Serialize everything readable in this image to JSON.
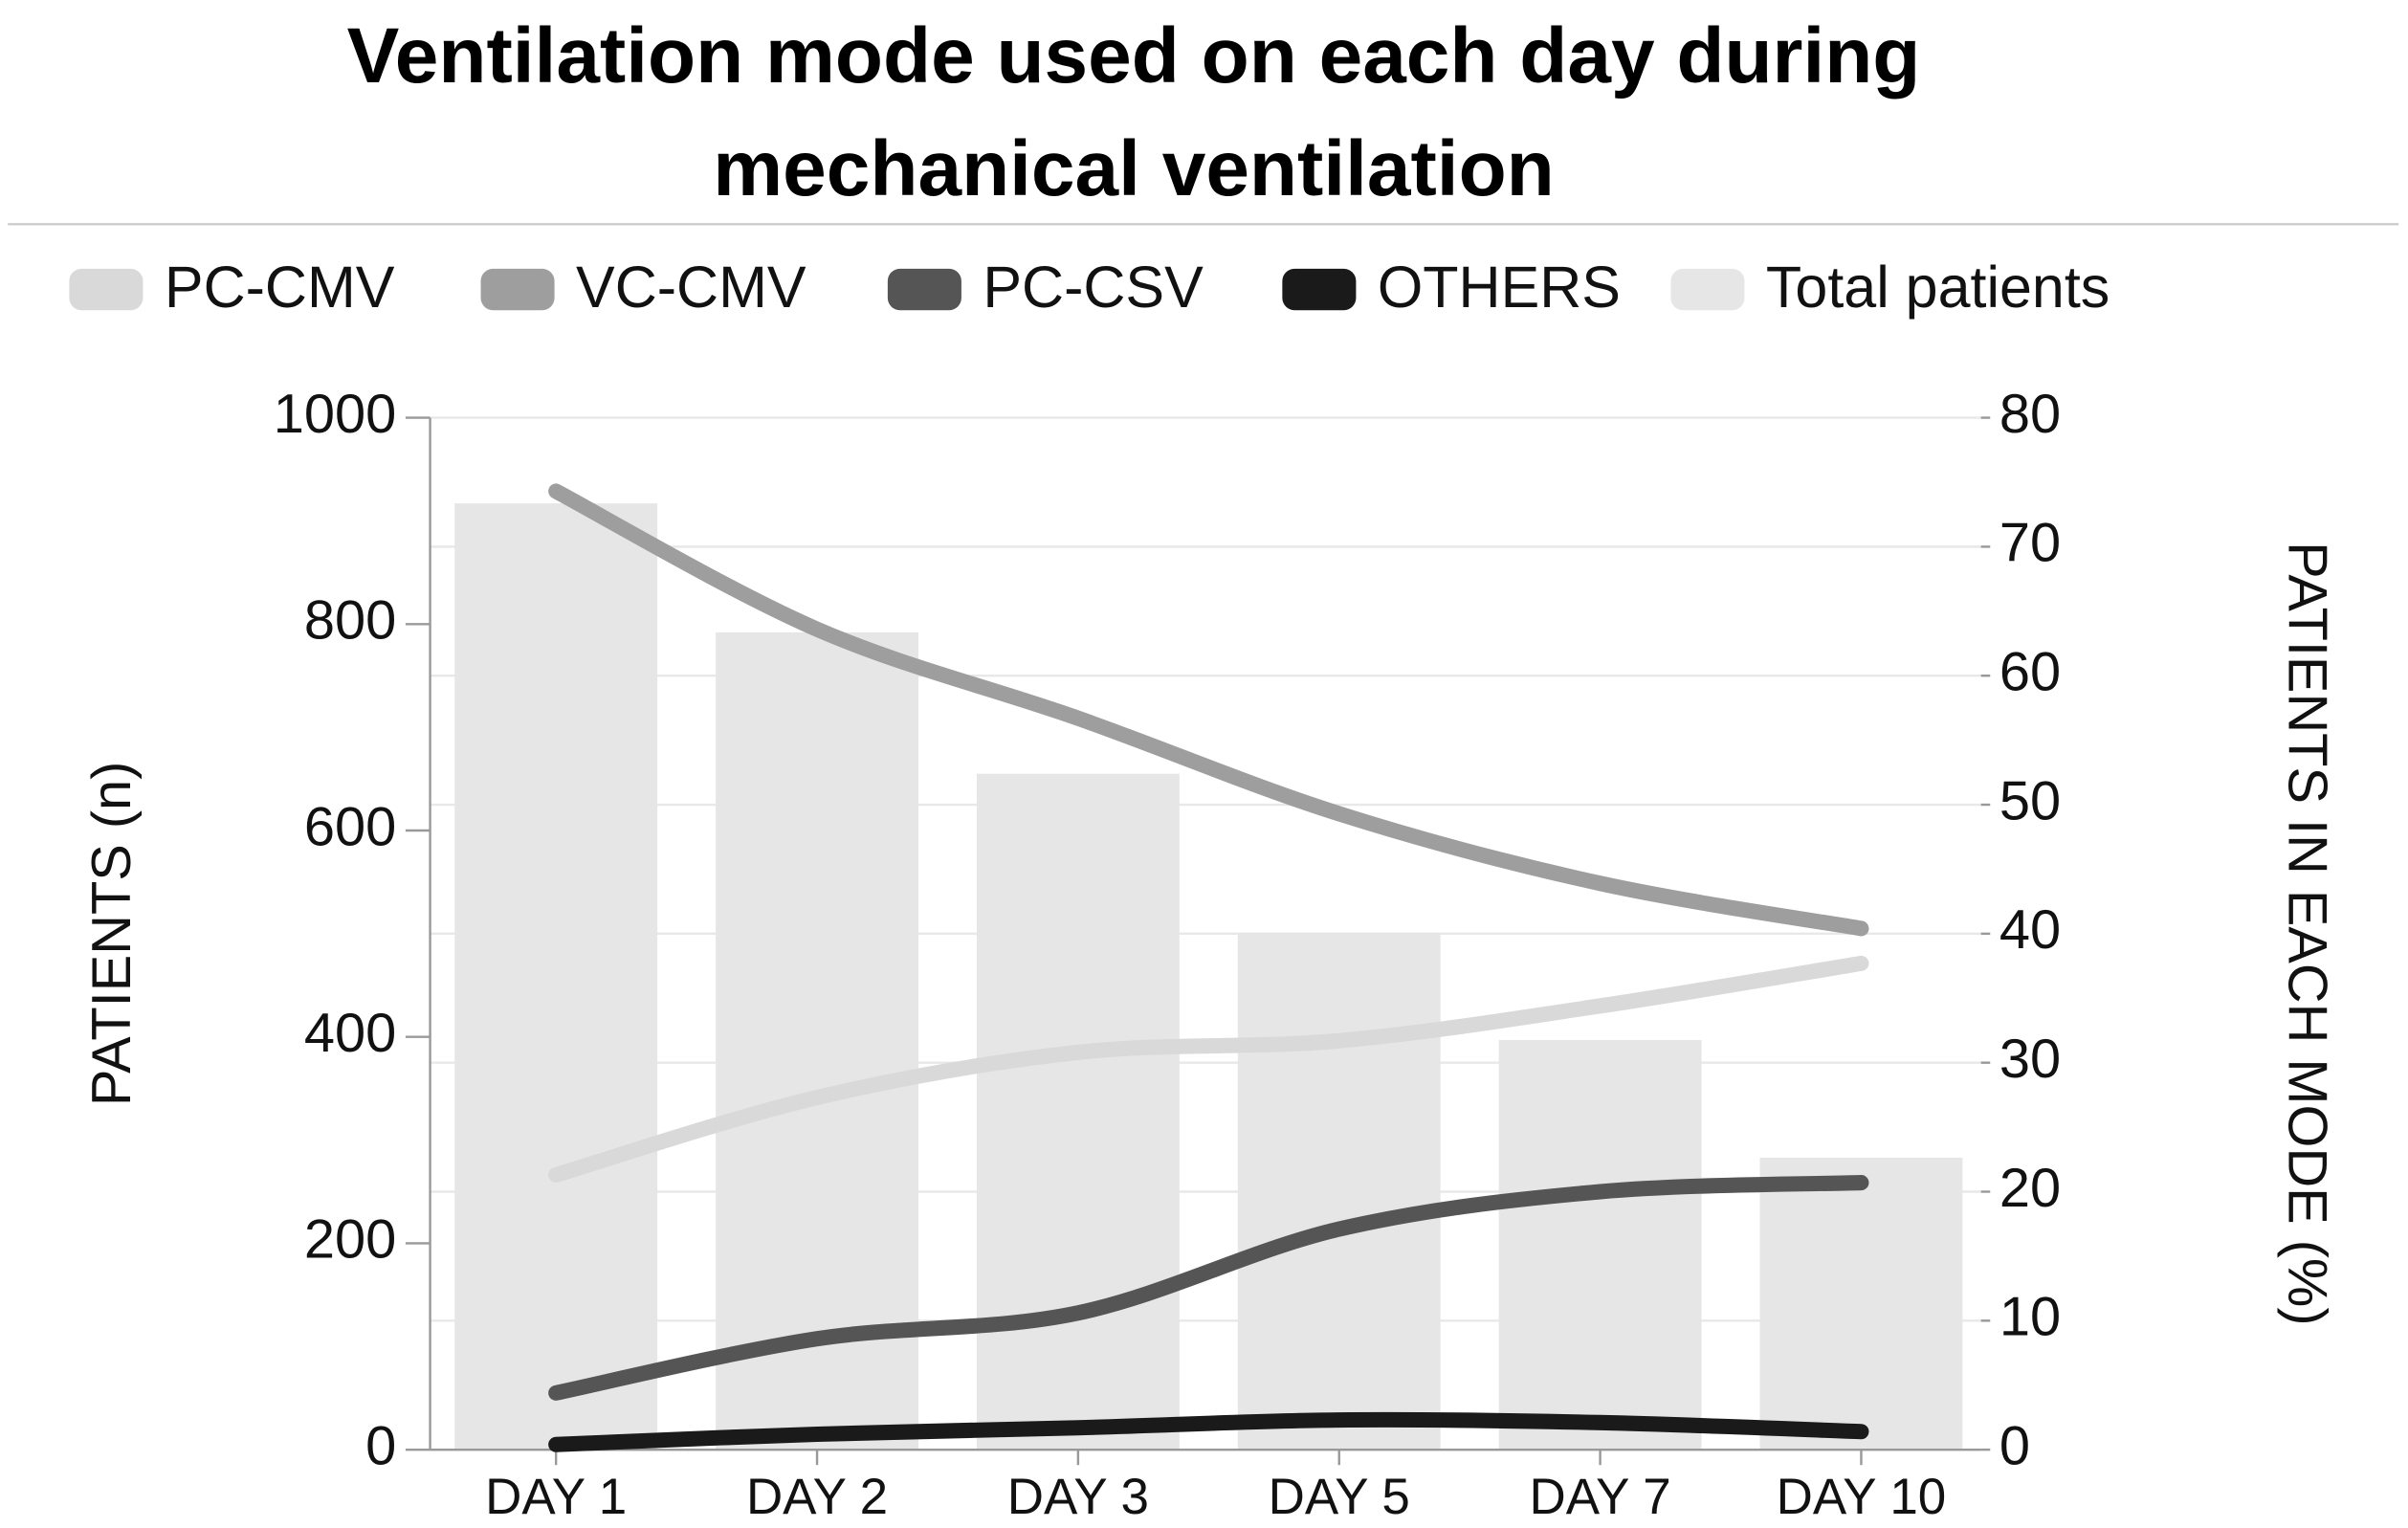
{
  "chart_data": {
    "type": "combo",
    "title": "Ventilation mode used on each day during mechanical ventilation",
    "y_label": "PATIENTS (n)",
    "y2_label": "PATIENTS IN EACH MODE (%)",
    "categories": [
      "DAY 1",
      "DAY 2",
      "DAY 3",
      "DAY 5",
      "DAY 7",
      "DAY 10"
    ],
    "bars": {
      "name": "Total patients",
      "color": "#e6e6e6",
      "values": [
        917,
        792,
        655,
        501,
        397,
        283
      ]
    },
    "series": [
      {
        "name": "PC-CMV",
        "color": "#d9d9d9",
        "axis": "y2",
        "values": [
          21.3,
          27.3,
          30.8,
          31.7,
          34.4,
          37.7
        ]
      },
      {
        "name": "VC-CMV",
        "color": "#9e9e9e",
        "axis": "y2",
        "values": [
          74.3,
          63.6,
          56.7,
          49.3,
          43.9,
          40.4
        ]
      },
      {
        "name": "PC-CSV",
        "color": "#555555",
        "axis": "y2",
        "values": [
          4.4,
          8.6,
          10.6,
          17.1,
          20.0,
          20.7
        ]
      },
      {
        "name": "OTHERS",
        "color": "#1a1a1a",
        "axis": "y2",
        "values": [
          0.4,
          1.2,
          1.7,
          2.3,
          2.1,
          1.4
        ]
      }
    ],
    "ylim": [
      0,
      1000
    ],
    "yticks": [
      0,
      200,
      400,
      600,
      800,
      1000
    ],
    "y2lim": [
      0,
      80
    ],
    "y2ticks": [
      0,
      10,
      20,
      30,
      40,
      50,
      60,
      70,
      80
    ],
    "grid": true,
    "legend": "top"
  }
}
